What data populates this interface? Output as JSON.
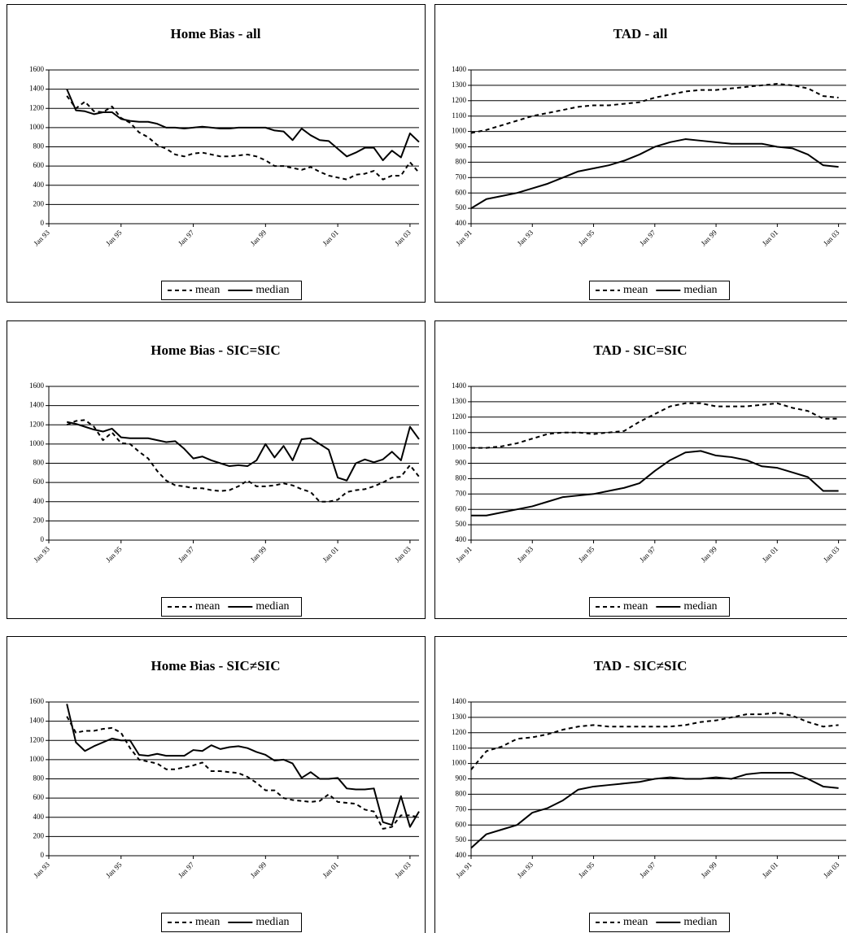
{
  "chart_data": [
    {
      "type": "line",
      "title": "Home Bias - all",
      "x": [
        1993.5,
        1993.75,
        1994,
        1994.25,
        1994.5,
        1994.75,
        1995,
        1995.25,
        1995.5,
        1995.75,
        1996,
        1996.25,
        1996.5,
        1996.75,
        1997,
        1997.25,
        1997.5,
        1997.75,
        1998,
        1998.25,
        1998.5,
        1998.75,
        1999,
        1999.25,
        1999.5,
        1999.75,
        2000,
        2000.25,
        2000.5,
        2000.75,
        2001,
        2001.25,
        2001.5,
        2001.75,
        2002,
        2002.25,
        2002.5,
        2002.75,
        2003,
        2003.25
      ],
      "xlim": [
        1993,
        2003.25
      ],
      "xticks": [
        {
          "value": 1993,
          "label": "Jan 93"
        },
        {
          "value": 1995,
          "label": "Jan 95"
        },
        {
          "value": 1997,
          "label": "Jan 97"
        },
        {
          "value": 1999,
          "label": "Jan 99"
        },
        {
          "value": 2001,
          "label": "Jan 01"
        },
        {
          "value": 2003,
          "label": "Jan 03"
        }
      ],
      "ylim": [
        0,
        1600
      ],
      "yticks": [
        0,
        200,
        400,
        600,
        800,
        1000,
        1200,
        1400,
        1600
      ],
      "grid": true,
      "legend": "bottom",
      "series": [
        {
          "name": "mean",
          "color": "#000000",
          "dash": "dashed",
          "values": [
            1330,
            1200,
            1270,
            1170,
            1160,
            1220,
            1100,
            1050,
            950,
            900,
            820,
            780,
            720,
            700,
            730,
            740,
            720,
            700,
            700,
            710,
            720,
            700,
            660,
            600,
            600,
            580,
            560,
            590,
            540,
            500,
            480,
            460,
            510,
            520,
            550,
            460,
            500,
            500,
            640,
            530
          ]
        },
        {
          "name": "median",
          "color": "#000000",
          "dash": "solid",
          "values": [
            1400,
            1180,
            1170,
            1140,
            1160,
            1160,
            1090,
            1070,
            1060,
            1060,
            1040,
            1000,
            1000,
            990,
            1000,
            1010,
            1000,
            990,
            990,
            1000,
            1000,
            1000,
            1000,
            970,
            960,
            870,
            990,
            920,
            870,
            860,
            780,
            700,
            740,
            790,
            790,
            660,
            760,
            690,
            940,
            850
          ]
        }
      ]
    },
    {
      "type": "line",
      "title": "TAD - all",
      "x": [
        1991,
        1991.5,
        1992,
        1992.5,
        1993,
        1993.5,
        1994,
        1994.5,
        1995,
        1995.5,
        1996,
        1996.5,
        1997,
        1997.5,
        1998,
        1998.5,
        1999,
        1999.5,
        2000,
        2000.5,
        2001,
        2001.5,
        2002,
        2002.5,
        2003
      ],
      "xlim": [
        1991,
        2003.25
      ],
      "xticks": [
        {
          "value": 1991,
          "label": "Jan 91"
        },
        {
          "value": 1993,
          "label": "Jan 93"
        },
        {
          "value": 1995,
          "label": "Jan 95"
        },
        {
          "value": 1997,
          "label": "Jan 97"
        },
        {
          "value": 1999,
          "label": "Jan 99"
        },
        {
          "value": 2001,
          "label": "Jan 01"
        },
        {
          "value": 2003,
          "label": "Jan 03"
        }
      ],
      "ylim": [
        400,
        1400
      ],
      "yticks": [
        400,
        500,
        600,
        700,
        800,
        900,
        1000,
        1100,
        1200,
        1300,
        1400
      ],
      "grid": true,
      "legend": "bottom",
      "series": [
        {
          "name": "mean",
          "color": "#000000",
          "dash": "dashed",
          "values": [
            990,
            1010,
            1040,
            1070,
            1100,
            1120,
            1140,
            1160,
            1170,
            1170,
            1180,
            1190,
            1220,
            1240,
            1260,
            1270,
            1270,
            1280,
            1290,
            1300,
            1310,
            1300,
            1280,
            1230,
            1220
          ]
        },
        {
          "name": "median",
          "color": "#000000",
          "dash": "solid",
          "values": [
            500,
            560,
            580,
            600,
            630,
            660,
            700,
            740,
            760,
            780,
            810,
            850,
            900,
            930,
            950,
            940,
            930,
            920,
            920,
            920,
            900,
            890,
            850,
            780,
            770
          ]
        }
      ]
    },
    {
      "type": "line",
      "title": "Home Bias - SIC=SIC",
      "x": [
        1993.5,
        1993.75,
        1994,
        1994.25,
        1994.5,
        1994.75,
        1995,
        1995.25,
        1995.5,
        1995.75,
        1996,
        1996.25,
        1996.5,
        1996.75,
        1997,
        1997.25,
        1997.5,
        1997.75,
        1998,
        1998.25,
        1998.5,
        1998.75,
        1999,
        1999.25,
        1999.5,
        1999.75,
        2000,
        2000.25,
        2000.5,
        2000.75,
        2001,
        2001.25,
        2001.5,
        2001.75,
        2002,
        2002.25,
        2002.5,
        2002.75,
        2003,
        2003.25
      ],
      "xlim": [
        1993,
        2003.25
      ],
      "xticks": [
        {
          "value": 1993,
          "label": "Jan 93"
        },
        {
          "value": 1995,
          "label": "Jan 95"
        },
        {
          "value": 1997,
          "label": "Jan 97"
        },
        {
          "value": 1999,
          "label": "Jan 99"
        },
        {
          "value": 2001,
          "label": "Jan 01"
        },
        {
          "value": 2003,
          "label": "Jan 03"
        }
      ],
      "ylim": [
        0,
        1600
      ],
      "yticks": [
        0,
        200,
        400,
        600,
        800,
        1000,
        1200,
        1400,
        1600
      ],
      "grid": true,
      "legend": "bottom",
      "series": [
        {
          "name": "mean",
          "color": "#000000",
          "dash": "dashed",
          "values": [
            1200,
            1240,
            1250,
            1180,
            1040,
            1120,
            1010,
            1000,
            920,
            850,
            720,
            620,
            570,
            560,
            540,
            540,
            520,
            510,
            520,
            560,
            620,
            560,
            560,
            570,
            590,
            570,
            530,
            500,
            400,
            400,
            420,
            500,
            520,
            530,
            560,
            600,
            650,
            660,
            780,
            660
          ]
        },
        {
          "name": "median",
          "color": "#000000",
          "dash": "solid",
          "values": [
            1230,
            1210,
            1180,
            1150,
            1130,
            1160,
            1070,
            1060,
            1060,
            1060,
            1040,
            1020,
            1030,
            950,
            850,
            870,
            830,
            800,
            770,
            780,
            770,
            830,
            1000,
            860,
            980,
            830,
            1050,
            1060,
            1000,
            940,
            650,
            620,
            800,
            840,
            810,
            840,
            920,
            830,
            1180,
            1050
          ]
        }
      ]
    },
    {
      "type": "line",
      "title": "TAD - SIC=SIC",
      "x": [
        1991,
        1991.5,
        1992,
        1992.5,
        1993,
        1993.5,
        1994,
        1994.5,
        1995,
        1995.5,
        1996,
        1996.5,
        1997,
        1997.5,
        1998,
        1998.5,
        1999,
        1999.5,
        2000,
        2000.5,
        2001,
        2001.5,
        2002,
        2002.5,
        2003
      ],
      "xlim": [
        1991,
        2003.25
      ],
      "xticks": [
        {
          "value": 1991,
          "label": "Jan 91"
        },
        {
          "value": 1993,
          "label": "Jan 93"
        },
        {
          "value": 1995,
          "label": "Jan 95"
        },
        {
          "value": 1997,
          "label": "Jan 97"
        },
        {
          "value": 1999,
          "label": "Jan 99"
        },
        {
          "value": 2001,
          "label": "Jan 01"
        },
        {
          "value": 2003,
          "label": "Jan 03"
        }
      ],
      "ylim": [
        400,
        1400
      ],
      "yticks": [
        400,
        500,
        600,
        700,
        800,
        900,
        1000,
        1100,
        1200,
        1300,
        1400
      ],
      "grid": true,
      "legend": "bottom",
      "series": [
        {
          "name": "mean",
          "color": "#000000",
          "dash": "dashed",
          "values": [
            1000,
            1000,
            1010,
            1030,
            1060,
            1090,
            1100,
            1100,
            1090,
            1100,
            1110,
            1170,
            1220,
            1270,
            1290,
            1290,
            1270,
            1270,
            1270,
            1280,
            1290,
            1260,
            1240,
            1190,
            1190
          ]
        },
        {
          "name": "median",
          "color": "#000000",
          "dash": "solid",
          "values": [
            560,
            560,
            580,
            600,
            620,
            650,
            680,
            690,
            700,
            720,
            740,
            770,
            850,
            920,
            970,
            980,
            950,
            940,
            920,
            880,
            870,
            840,
            810,
            720,
            720
          ]
        }
      ]
    },
    {
      "type": "line",
      "title": "Home Bias - SIC≠SIC",
      "x": [
        1993.5,
        1993.75,
        1994,
        1994.25,
        1994.5,
        1994.75,
        1995,
        1995.25,
        1995.5,
        1995.75,
        1996,
        1996.25,
        1996.5,
        1996.75,
        1997,
        1997.25,
        1997.5,
        1997.75,
        1998,
        1998.25,
        1998.5,
        1998.75,
        1999,
        1999.25,
        1999.5,
        1999.75,
        2000,
        2000.25,
        2000.5,
        2000.75,
        2001,
        2001.25,
        2001.5,
        2001.75,
        2002,
        2002.25,
        2002.5,
        2002.75,
        2003,
        2003.25
      ],
      "xlim": [
        1993,
        2003.25
      ],
      "xticks": [
        {
          "value": 1993,
          "label": "Jan 93"
        },
        {
          "value": 1995,
          "label": "Jan 95"
        },
        {
          "value": 1997,
          "label": "Jan 97"
        },
        {
          "value": 1999,
          "label": "Jan 99"
        },
        {
          "value": 2001,
          "label": "Jan 01"
        },
        {
          "value": 2003,
          "label": "Jan 03"
        }
      ],
      "ylim": [
        0,
        1600
      ],
      "yticks": [
        0,
        200,
        400,
        600,
        800,
        1000,
        1200,
        1400,
        1600
      ],
      "grid": true,
      "legend": "bottom",
      "series": [
        {
          "name": "mean",
          "color": "#000000",
          "dash": "dashed",
          "values": [
            1450,
            1280,
            1300,
            1300,
            1320,
            1330,
            1280,
            1120,
            1000,
            980,
            960,
            900,
            900,
            920,
            940,
            970,
            880,
            880,
            870,
            860,
            820,
            760,
            680,
            680,
            600,
            580,
            570,
            560,
            570,
            640,
            560,
            550,
            540,
            480,
            460,
            280,
            300,
            420,
            420,
            400
          ]
        },
        {
          "name": "median",
          "color": "#000000",
          "dash": "solid",
          "values": [
            1580,
            1180,
            1090,
            1140,
            1180,
            1220,
            1200,
            1200,
            1050,
            1040,
            1060,
            1040,
            1040,
            1040,
            1100,
            1090,
            1150,
            1110,
            1130,
            1140,
            1120,
            1080,
            1050,
            990,
            1000,
            960,
            810,
            870,
            800,
            800,
            810,
            700,
            690,
            690,
            700,
            350,
            320,
            620,
            300,
            460
          ]
        }
      ]
    },
    {
      "type": "line",
      "title": "TAD - SIC≠SIC",
      "x": [
        1991,
        1991.5,
        1992,
        1992.5,
        1993,
        1993.5,
        1994,
        1994.5,
        1995,
        1995.5,
        1996,
        1996.5,
        1997,
        1997.5,
        1998,
        1998.5,
        1999,
        1999.5,
        2000,
        2000.5,
        2001,
        2001.5,
        2002,
        2002.5,
        2003
      ],
      "xlim": [
        1991,
        2003.25
      ],
      "xticks": [
        {
          "value": 1991,
          "label": "Jan 91"
        },
        {
          "value": 1993,
          "label": "Jan 93"
        },
        {
          "value": 1995,
          "label": "Jan 95"
        },
        {
          "value": 1997,
          "label": "Jan 97"
        },
        {
          "value": 1999,
          "label": "Jan 99"
        },
        {
          "value": 2001,
          "label": "Jan 01"
        },
        {
          "value": 2003,
          "label": "Jan 03"
        }
      ],
      "ylim": [
        400,
        1400
      ],
      "yticks": [
        400,
        500,
        600,
        700,
        800,
        900,
        1000,
        1100,
        1200,
        1300,
        1400
      ],
      "grid": true,
      "legend": "bottom",
      "series": [
        {
          "name": "mean",
          "color": "#000000",
          "dash": "dashed",
          "values": [
            960,
            1080,
            1110,
            1160,
            1170,
            1190,
            1220,
            1240,
            1250,
            1240,
            1240,
            1240,
            1240,
            1240,
            1250,
            1270,
            1280,
            1300,
            1320,
            1320,
            1330,
            1310,
            1270,
            1240,
            1250
          ]
        },
        {
          "name": "median",
          "color": "#000000",
          "dash": "solid",
          "values": [
            450,
            540,
            570,
            600,
            680,
            710,
            760,
            830,
            850,
            860,
            870,
            880,
            900,
            910,
            900,
            900,
            910,
            900,
            930,
            940,
            940,
            940,
            900,
            850,
            840
          ]
        }
      ]
    }
  ]
}
